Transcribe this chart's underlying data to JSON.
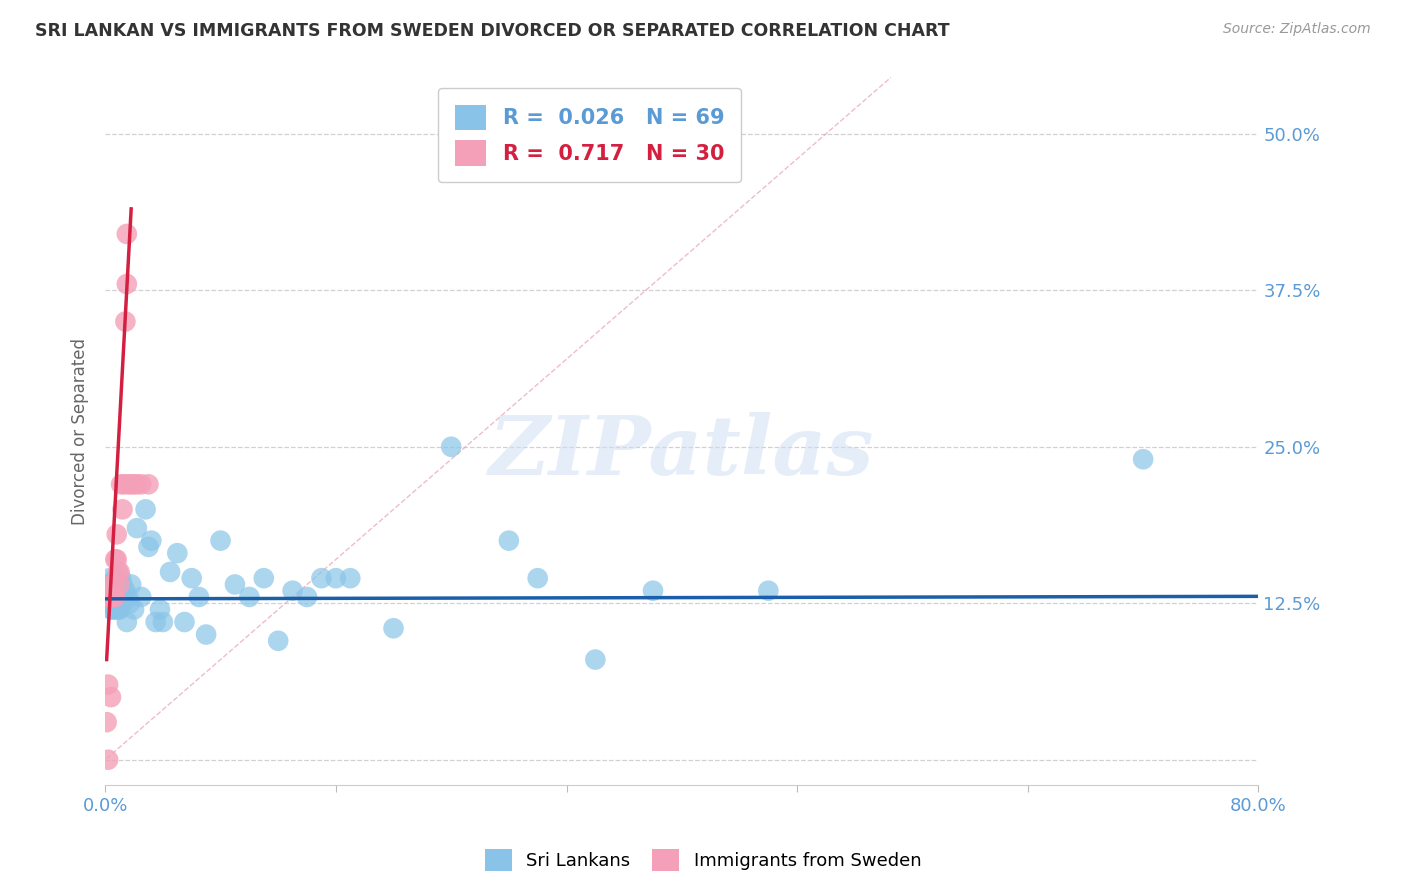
{
  "title": "SRI LANKAN VS IMMIGRANTS FROM SWEDEN DIVORCED OR SEPARATED CORRELATION CHART",
  "source": "Source: ZipAtlas.com",
  "ylabel": "Divorced or Separated",
  "xlim": [
    0.0,
    0.8
  ],
  "ylim": [
    -0.02,
    0.545
  ],
  "ytick_positions": [
    0.0,
    0.125,
    0.25,
    0.375,
    0.5
  ],
  "ytick_labels": [
    "",
    "12.5%",
    "25.0%",
    "37.5%",
    "50.0%"
  ],
  "xtick_positions": [
    0.0,
    0.16,
    0.32,
    0.48,
    0.64,
    0.8
  ],
  "xtick_labels": [
    "0.0%",
    "",
    "",
    "",
    "",
    "80.0%"
  ],
  "watermark_text": "ZIPatlas",
  "legend_blue_R": "0.026",
  "legend_blue_N": "69",
  "legend_pink_R": "0.717",
  "legend_pink_N": "30",
  "blue_color": "#89c4e8",
  "pink_color": "#f4a0b8",
  "trendline_blue_color": "#1a5fa8",
  "trendline_pink_color": "#d42040",
  "ref_line_color": "#e8a0b8",
  "grid_color": "#cccccc",
  "axis_label_color": "#5b9bd5",
  "title_color": "#333333",
  "source_color": "#999999",
  "blue_scatter_x": [
    0.001,
    0.002,
    0.002,
    0.003,
    0.003,
    0.003,
    0.004,
    0.004,
    0.004,
    0.005,
    0.005,
    0.005,
    0.006,
    0.006,
    0.006,
    0.007,
    0.007,
    0.007,
    0.008,
    0.008,
    0.008,
    0.009,
    0.009,
    0.01,
    0.01,
    0.01,
    0.011,
    0.011,
    0.012,
    0.012,
    0.013,
    0.014,
    0.015,
    0.016,
    0.017,
    0.018,
    0.02,
    0.022,
    0.025,
    0.028,
    0.03,
    0.032,
    0.035,
    0.038,
    0.04,
    0.045,
    0.05,
    0.055,
    0.06,
    0.065,
    0.07,
    0.08,
    0.09,
    0.1,
    0.11,
    0.12,
    0.13,
    0.14,
    0.15,
    0.16,
    0.17,
    0.2,
    0.24,
    0.28,
    0.3,
    0.34,
    0.38,
    0.46,
    0.72
  ],
  "blue_scatter_y": [
    0.13,
    0.14,
    0.125,
    0.145,
    0.125,
    0.13,
    0.135,
    0.12,
    0.14,
    0.13,
    0.12,
    0.135,
    0.125,
    0.13,
    0.14,
    0.12,
    0.135,
    0.145,
    0.125,
    0.13,
    0.14,
    0.12,
    0.135,
    0.13,
    0.14,
    0.12,
    0.135,
    0.145,
    0.125,
    0.14,
    0.13,
    0.135,
    0.11,
    0.13,
    0.125,
    0.14,
    0.12,
    0.185,
    0.13,
    0.2,
    0.17,
    0.175,
    0.11,
    0.12,
    0.11,
    0.15,
    0.165,
    0.11,
    0.145,
    0.13,
    0.1,
    0.175,
    0.14,
    0.13,
    0.145,
    0.095,
    0.135,
    0.13,
    0.145,
    0.145,
    0.145,
    0.105,
    0.25,
    0.175,
    0.145,
    0.08,
    0.135,
    0.135,
    0.24
  ],
  "pink_scatter_x": [
    0.001,
    0.002,
    0.002,
    0.003,
    0.003,
    0.004,
    0.004,
    0.005,
    0.005,
    0.006,
    0.006,
    0.007,
    0.007,
    0.008,
    0.008,
    0.009,
    0.01,
    0.01,
    0.011,
    0.012,
    0.013,
    0.014,
    0.015,
    0.015,
    0.016,
    0.018,
    0.02,
    0.022,
    0.025,
    0.03
  ],
  "pink_scatter_y": [
    0.03,
    0.0,
    0.06,
    0.13,
    0.13,
    0.05,
    0.13,
    0.13,
    0.14,
    0.13,
    0.14,
    0.13,
    0.16,
    0.18,
    0.16,
    0.15,
    0.15,
    0.14,
    0.22,
    0.2,
    0.22,
    0.35,
    0.42,
    0.38,
    0.22,
    0.22,
    0.22,
    0.22,
    0.22,
    0.22
  ],
  "blue_trend_x": [
    0.0,
    0.8
  ],
  "blue_trend_y": [
    0.1285,
    0.1305
  ],
  "pink_trend_x": [
    0.001,
    0.018
  ],
  "pink_trend_y": [
    0.08,
    0.44
  ],
  "ref_line_x": [
    0.001,
    0.545
  ],
  "ref_line_y": [
    0.001,
    0.545
  ]
}
